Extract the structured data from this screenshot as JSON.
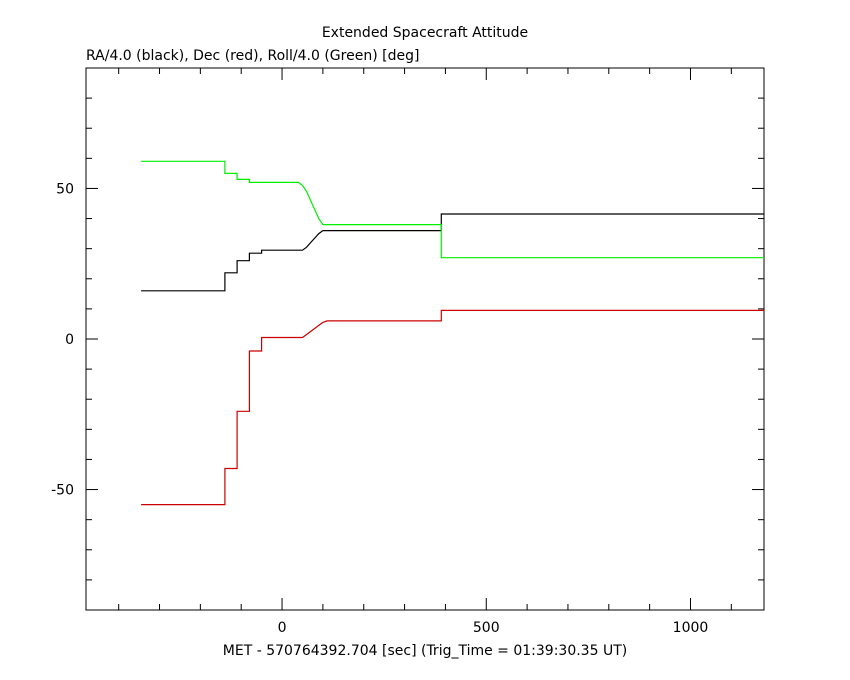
{
  "chart_data": {
    "type": "line",
    "title": "Extended Spacecraft Attitude",
    "subtitle": "RA/4.0 (black), Dec (red), Roll/4.0 (Green) [deg]",
    "xlabel": "MET - 570764392.704 [sec] (Trig_Time = 01:39:30.35 UT)",
    "ylabel": "",
    "xlim": [
      -480,
      1180
    ],
    "ylim": [
      -90,
      90
    ],
    "xticks": [
      0,
      500,
      1000
    ],
    "xtick_labels": [
      "0",
      "500",
      "1000"
    ],
    "yticks": [
      -50,
      0,
      50
    ],
    "ytick_labels": [
      "-50",
      "0",
      "50"
    ],
    "grid": false,
    "series": [
      {
        "color": "#000000",
        "x": [
          -345,
          -140,
          -140,
          -110,
          -110,
          -80,
          -80,
          -50,
          -50,
          50,
          60,
          70,
          80,
          90,
          100,
          110,
          390,
          390,
          1180
        ],
        "y": [
          16,
          16,
          22,
          22,
          26,
          26,
          28.5,
          28.5,
          29.5,
          29.5,
          30.5,
          32,
          33.5,
          35,
          36,
          36,
          36,
          41.5,
          41.5
        ]
      },
      {
        "color": "#cc0000",
        "x": [
          -345,
          -140,
          -140,
          -110,
          -110,
          -80,
          -80,
          -50,
          -50,
          50,
          60,
          70,
          80,
          90,
          100,
          110,
          390,
          390,
          1180
        ],
        "y": [
          -55,
          -55,
          -43,
          -43,
          -24,
          -24,
          -4,
          -4,
          0.5,
          0.5,
          1.5,
          2.5,
          3.5,
          4.5,
          5.5,
          6,
          6,
          9.5,
          9.5
        ]
      },
      {
        "color": "#00ee00",
        "x": [
          -345,
          -140,
          -140,
          -110,
          -110,
          -80,
          -80,
          40,
          50,
          60,
          70,
          80,
          90,
          100,
          110,
          390,
          390,
          1180
        ],
        "y": [
          59,
          59,
          55,
          55,
          53,
          53,
          52,
          52,
          51,
          49,
          46,
          43,
          40,
          38,
          38,
          38,
          27,
          27
        ]
      }
    ]
  }
}
